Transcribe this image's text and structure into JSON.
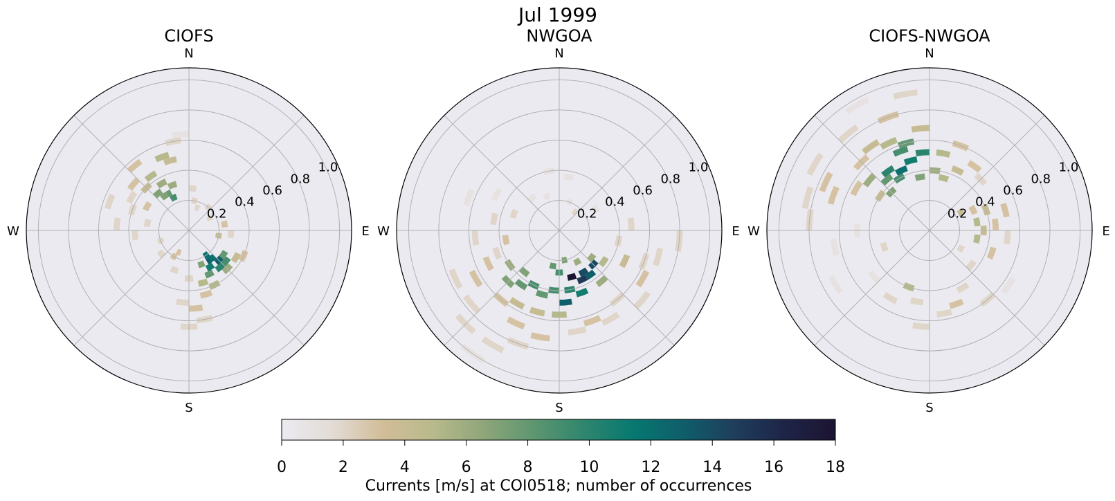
{
  "figure": {
    "title": "Jul 1999",
    "colorbar": {
      "label": "Currents [m/s] at COI0518; number of occurrences",
      "min": 0,
      "max": 18,
      "ticks": [
        "0",
        "2",
        "4",
        "6",
        "8",
        "10",
        "12",
        "14",
        "16",
        "18"
      ],
      "colors": [
        "#ecebf1",
        "#e3dcd6",
        "#d2bd99",
        "#b8ba8c",
        "#8fa67a",
        "#5e9670",
        "#2f866e",
        "#077870",
        "#0f5d6a",
        "#1f3e5c",
        "#1e2447",
        "#1c1431"
      ]
    }
  },
  "chart_data": [
    {
      "type": "heatmap",
      "subtype": "polar-rose",
      "title": "CIOFS",
      "direction_labels": [
        "N",
        "E",
        "S",
        "W"
      ],
      "radial_ticks": [
        "0.2",
        "0.4",
        "0.6",
        "0.8",
        "1.0"
      ],
      "rlim": [
        0,
        1.08
      ],
      "sector_width_deg": 10,
      "radial_bin_width": 0.04,
      "clim": [
        0,
        18
      ],
      "cells": [
        {
          "dir": 145,
          "r": 0.18,
          "count": 12
        },
        {
          "dir": 145,
          "r": 0.22,
          "count": 13
        },
        {
          "dir": 140,
          "r": 0.22,
          "count": 12
        },
        {
          "dir": 135,
          "r": 0.26,
          "count": 13
        },
        {
          "dir": 150,
          "r": 0.26,
          "count": 11
        },
        {
          "dir": 140,
          "r": 0.3,
          "count": 10
        },
        {
          "dir": 130,
          "r": 0.3,
          "count": 9
        },
        {
          "dir": 155,
          "r": 0.3,
          "count": 8
        },
        {
          "dir": 125,
          "r": 0.26,
          "count": 8
        },
        {
          "dir": 160,
          "r": 0.22,
          "count": 7
        },
        {
          "dir": 135,
          "r": 0.34,
          "count": 6
        },
        {
          "dir": 155,
          "r": 0.38,
          "count": 5
        },
        {
          "dir": 165,
          "r": 0.34,
          "count": 5
        },
        {
          "dir": 120,
          "r": 0.34,
          "count": 4
        },
        {
          "dir": 175,
          "r": 0.5,
          "count": 3
        },
        {
          "dir": 165,
          "r": 0.42,
          "count": 3
        },
        {
          "dir": 115,
          "r": 0.38,
          "count": 3
        },
        {
          "dir": 180,
          "r": 0.3,
          "count": 2
        },
        {
          "dir": 185,
          "r": 0.46,
          "count": 2
        },
        {
          "dir": 170,
          "r": 0.58,
          "count": 2
        },
        {
          "dir": 180,
          "r": 0.62,
          "count": 2
        },
        {
          "dir": 335,
          "r": 0.22,
          "count": 9
        },
        {
          "dir": 330,
          "r": 0.26,
          "count": 8
        },
        {
          "dir": 325,
          "r": 0.26,
          "count": 7
        },
        {
          "dir": 320,
          "r": 0.3,
          "count": 7
        },
        {
          "dir": 340,
          "r": 0.3,
          "count": 6
        },
        {
          "dir": 330,
          "r": 0.34,
          "count": 6
        },
        {
          "dir": 325,
          "r": 0.42,
          "count": 5
        },
        {
          "dir": 340,
          "r": 0.5,
          "count": 5
        },
        {
          "dir": 315,
          "r": 0.38,
          "count": 4
        },
        {
          "dir": 345,
          "r": 0.46,
          "count": 4
        },
        {
          "dir": 320,
          "r": 0.54,
          "count": 3
        },
        {
          "dir": 310,
          "r": 0.46,
          "count": 3
        },
        {
          "dir": 350,
          "r": 0.58,
          "count": 2
        },
        {
          "dir": 300,
          "r": 0.42,
          "count": 2
        },
        {
          "dir": 290,
          "r": 0.38,
          "count": 2
        },
        {
          "dir": 300,
          "r": 0.3,
          "count": 3
        },
        {
          "dir": 280,
          "r": 0.26,
          "count": 2
        },
        {
          "dir": 265,
          "r": 0.34,
          "count": 2
        },
        {
          "dir": 250,
          "r": 0.18,
          "count": 2
        },
        {
          "dir": 230,
          "r": 0.22,
          "count": 2
        },
        {
          "dir": 210,
          "r": 0.18,
          "count": 3
        },
        {
          "dir": 200,
          "r": 0.26,
          "count": 2
        },
        {
          "dir": 205,
          "r": 0.14,
          "count": 3
        },
        {
          "dir": 10,
          "r": 0.18,
          "count": 2
        },
        {
          "dir": 20,
          "r": 0.14,
          "count": 2
        },
        {
          "dir": 40,
          "r": 0.18,
          "count": 2
        },
        {
          "dir": 60,
          "r": 0.14,
          "count": 2
        },
        {
          "dir": 80,
          "r": 0.22,
          "count": 3
        },
        {
          "dir": 100,
          "r": 0.18,
          "count": 4
        },
        {
          "dir": 95,
          "r": 0.26,
          "count": 2
        },
        {
          "dir": 355,
          "r": 0.62,
          "count": 1
        },
        {
          "dir": 5,
          "r": 0.26,
          "count": 2
        },
        {
          "dir": 290,
          "r": 0.54,
          "count": 2
        },
        {
          "dir": 275,
          "r": 0.46,
          "count": 2
        }
      ]
    },
    {
      "type": "heatmap",
      "subtype": "polar-rose",
      "title": "NWGOA",
      "direction_labels": [
        "N",
        "E",
        "S",
        "W"
      ],
      "radial_ticks": [
        "0.2",
        "0.4",
        "0.6",
        "0.8",
        "1.0"
      ],
      "rlim": [
        0,
        1.08
      ],
      "sector_width_deg": 10,
      "radial_bin_width": 0.04,
      "clim": [
        0,
        18
      ],
      "cells": [
        {
          "dir": 165,
          "r": 0.3,
          "count": 18
        },
        {
          "dir": 155,
          "r": 0.34,
          "count": 15
        },
        {
          "dir": 150,
          "r": 0.3,
          "count": 14
        },
        {
          "dir": 145,
          "r": 0.34,
          "count": 13
        },
        {
          "dir": 135,
          "r": 0.3,
          "count": 14
        },
        {
          "dir": 175,
          "r": 0.46,
          "count": 13
        },
        {
          "dir": 170,
          "r": 0.38,
          "count": 10
        },
        {
          "dir": 160,
          "r": 0.42,
          "count": 11
        },
        {
          "dir": 185,
          "r": 0.38,
          "count": 9
        },
        {
          "dir": 195,
          "r": 0.42,
          "count": 8
        },
        {
          "dir": 205,
          "r": 0.38,
          "count": 9
        },
        {
          "dir": 215,
          "r": 0.42,
          "count": 8
        },
        {
          "dir": 225,
          "r": 0.46,
          "count": 7
        },
        {
          "dir": 220,
          "r": 0.34,
          "count": 7
        },
        {
          "dir": 235,
          "r": 0.38,
          "count": 6
        },
        {
          "dir": 180,
          "r": 0.26,
          "count": 9
        },
        {
          "dir": 190,
          "r": 0.22,
          "count": 8
        },
        {
          "dir": 170,
          "r": 0.18,
          "count": 7
        },
        {
          "dir": 150,
          "r": 0.22,
          "count": 6
        },
        {
          "dir": 130,
          "r": 0.26,
          "count": 6
        },
        {
          "dir": 125,
          "r": 0.34,
          "count": 5
        },
        {
          "dir": 140,
          "r": 0.42,
          "count": 6
        },
        {
          "dir": 180,
          "r": 0.54,
          "count": 5
        },
        {
          "dir": 195,
          "r": 0.54,
          "count": 4
        },
        {
          "dir": 210,
          "r": 0.54,
          "count": 4
        },
        {
          "dir": 220,
          "r": 0.58,
          "count": 3
        },
        {
          "dir": 205,
          "r": 0.66,
          "count": 3
        },
        {
          "dir": 190,
          "r": 0.7,
          "count": 3
        },
        {
          "dir": 200,
          "r": 0.78,
          "count": 2
        },
        {
          "dir": 210,
          "r": 0.86,
          "count": 2
        },
        {
          "dir": 215,
          "r": 0.98,
          "count": 1
        },
        {
          "dir": 225,
          "r": 0.86,
          "count": 2
        },
        {
          "dir": 230,
          "r": 0.74,
          "count": 2
        },
        {
          "dir": 240,
          "r": 0.62,
          "count": 3
        },
        {
          "dir": 245,
          "r": 0.5,
          "count": 3
        },
        {
          "dir": 250,
          "r": 0.42,
          "count": 2
        },
        {
          "dir": 260,
          "r": 0.34,
          "count": 3
        },
        {
          "dir": 265,
          "r": 0.54,
          "count": 2
        },
        {
          "dir": 280,
          "r": 0.42,
          "count": 2
        },
        {
          "dir": 290,
          "r": 0.3,
          "count": 2
        },
        {
          "dir": 300,
          "r": 0.46,
          "count": 1
        },
        {
          "dir": 290,
          "r": 0.62,
          "count": 1
        },
        {
          "dir": 115,
          "r": 0.46,
          "count": 4
        },
        {
          "dir": 110,
          "r": 0.58,
          "count": 2
        },
        {
          "dir": 120,
          "r": 0.62,
          "count": 3
        },
        {
          "dir": 105,
          "r": 0.66,
          "count": 2
        },
        {
          "dir": 95,
          "r": 0.78,
          "count": 2
        },
        {
          "dir": 100,
          "r": 0.38,
          "count": 2
        },
        {
          "dir": 85,
          "r": 0.46,
          "count": 2
        },
        {
          "dir": 130,
          "r": 0.7,
          "count": 2
        },
        {
          "dir": 140,
          "r": 0.58,
          "count": 2
        },
        {
          "dir": 150,
          "r": 0.66,
          "count": 2
        },
        {
          "dir": 160,
          "r": 0.62,
          "count": 3
        },
        {
          "dir": 170,
          "r": 0.66,
          "count": 2
        },
        {
          "dir": 20,
          "r": 0.18,
          "count": 1
        },
        {
          "dir": 40,
          "r": 0.14,
          "count": 2
        },
        {
          "dir": 340,
          "r": 0.22,
          "count": 1
        },
        {
          "dir": 320,
          "r": 0.26,
          "count": 1
        },
        {
          "dir": 350,
          "r": 0.38,
          "count": 1
        },
        {
          "dir": 10,
          "r": 0.34,
          "count": 1
        },
        {
          "dir": 60,
          "r": 0.26,
          "count": 1
        },
        {
          "dir": 245,
          "r": 0.74,
          "count": 2
        }
      ]
    },
    {
      "type": "heatmap",
      "subtype": "polar-rose",
      "title": "CIOFS-NWGOA",
      "direction_labels": [
        "N",
        "E",
        "S",
        "W"
      ],
      "radial_ticks": [
        "0.2",
        "0.4",
        "0.6",
        "0.8",
        "1.0"
      ],
      "rlim": [
        0,
        1.08
      ],
      "sector_width_deg": 10,
      "radial_bin_width": 0.04,
      "clim": [
        0,
        18
      ],
      "cells": [
        {
          "dir": 335,
          "r": 0.42,
          "count": 12
        },
        {
          "dir": 345,
          "r": 0.46,
          "count": 11
        },
        {
          "dir": 325,
          "r": 0.46,
          "count": 10
        },
        {
          "dir": 355,
          "r": 0.5,
          "count": 10
        },
        {
          "dir": 340,
          "r": 0.54,
          "count": 9
        },
        {
          "dir": 330,
          "r": 0.38,
          "count": 9
        },
        {
          "dir": 320,
          "r": 0.42,
          "count": 8
        },
        {
          "dir": 315,
          "r": 0.34,
          "count": 7
        },
        {
          "dir": 350,
          "r": 0.34,
          "count": 7
        },
        {
          "dir": 345,
          "r": 0.58,
          "count": 8
        },
        {
          "dir": 310,
          "r": 0.5,
          "count": 6
        },
        {
          "dir": 335,
          "r": 0.62,
          "count": 5
        },
        {
          "dir": 325,
          "r": 0.66,
          "count": 4
        },
        {
          "dir": 355,
          "r": 0.66,
          "count": 4
        },
        {
          "dir": 315,
          "r": 0.62,
          "count": 3
        },
        {
          "dir": 305,
          "r": 0.38,
          "count": 4
        },
        {
          "dir": 300,
          "r": 0.54,
          "count": 3
        },
        {
          "dir": 290,
          "r": 0.66,
          "count": 3
        },
        {
          "dir": 295,
          "r": 0.74,
          "count": 3
        },
        {
          "dir": 285,
          "r": 0.82,
          "count": 2
        },
        {
          "dir": 275,
          "r": 0.78,
          "count": 2
        },
        {
          "dir": 300,
          "r": 0.86,
          "count": 2
        },
        {
          "dir": 320,
          "r": 0.82,
          "count": 2
        },
        {
          "dir": 340,
          "r": 0.78,
          "count": 3
        },
        {
          "dir": 350,
          "r": 0.9,
          "count": 2
        },
        {
          "dir": 330,
          "r": 0.94,
          "count": 1
        },
        {
          "dir": 5,
          "r": 0.38,
          "count": 6
        },
        {
          "dir": 15,
          "r": 0.34,
          "count": 5
        },
        {
          "dir": 10,
          "r": 0.5,
          "count": 5
        },
        {
          "dir": 25,
          "r": 0.42,
          "count": 4
        },
        {
          "dir": 20,
          "r": 0.58,
          "count": 3
        },
        {
          "dir": 35,
          "r": 0.5,
          "count": 3
        },
        {
          "dir": 45,
          "r": 0.46,
          "count": 2
        },
        {
          "dir": 70,
          "r": 0.38,
          "count": 4
        },
        {
          "dir": 80,
          "r": 0.3,
          "count": 5
        },
        {
          "dir": 90,
          "r": 0.34,
          "count": 4
        },
        {
          "dir": 100,
          "r": 0.3,
          "count": 5
        },
        {
          "dir": 85,
          "r": 0.42,
          "count": 3
        },
        {
          "dir": 75,
          "r": 0.5,
          "count": 3
        },
        {
          "dir": 95,
          "r": 0.5,
          "count": 2
        },
        {
          "dir": 110,
          "r": 0.42,
          "count": 3
        },
        {
          "dir": 60,
          "r": 0.22,
          "count": 4
        },
        {
          "dir": 65,
          "r": 0.3,
          "count": 3
        },
        {
          "dir": 120,
          "r": 0.22,
          "count": 2
        },
        {
          "dir": 130,
          "r": 0.34,
          "count": 2
        },
        {
          "dir": 150,
          "r": 0.42,
          "count": 2
        },
        {
          "dir": 160,
          "r": 0.5,
          "count": 3
        },
        {
          "dir": 170,
          "r": 0.54,
          "count": 2
        },
        {
          "dir": 190,
          "r": 0.46,
          "count": 2
        },
        {
          "dir": 200,
          "r": 0.38,
          "count": 5
        },
        {
          "dir": 210,
          "r": 0.5,
          "count": 2
        },
        {
          "dir": 230,
          "r": 0.46,
          "count": 1
        },
        {
          "dir": 250,
          "r": 0.3,
          "count": 2
        },
        {
          "dir": 270,
          "r": 0.46,
          "count": 1
        },
        {
          "dir": 260,
          "r": 0.62,
          "count": 1
        },
        {
          "dir": 185,
          "r": 0.62,
          "count": 2
        },
        {
          "dir": 140,
          "r": 0.58,
          "count": 2
        },
        {
          "dir": 125,
          "r": 0.62,
          "count": 1
        },
        {
          "dir": 240,
          "r": 0.7,
          "count": 1
        }
      ]
    }
  ]
}
